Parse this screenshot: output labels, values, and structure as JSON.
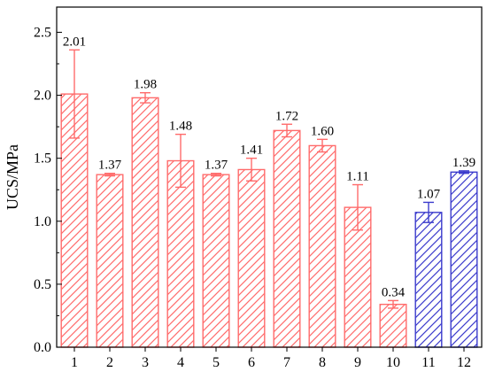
{
  "chart_data": {
    "type": "bar",
    "categories": [
      "1",
      "2",
      "3",
      "4",
      "5",
      "6",
      "7",
      "8",
      "9",
      "10",
      "11",
      "12"
    ],
    "values": [
      2.01,
      1.37,
      1.98,
      1.48,
      1.37,
      1.41,
      1.72,
      1.6,
      1.11,
      0.34,
      1.07,
      1.39
    ],
    "value_labels": [
      "2.01",
      "1.37",
      "1.98",
      "1.48",
      "1.37",
      "1.41",
      "1.72",
      "1.60",
      "1.11",
      "0.34",
      "1.07",
      "1.39"
    ],
    "error": [
      0.35,
      0.01,
      0.04,
      0.21,
      0.01,
      0.09,
      0.05,
      0.05,
      0.18,
      0.03,
      0.08,
      0.01
    ],
    "bar_colors": [
      "#ff6b6b",
      "#ff6b6b",
      "#ff6b6b",
      "#ff6b6b",
      "#ff6b6b",
      "#ff6b6b",
      "#ff6b6b",
      "#ff6b6b",
      "#ff6b6b",
      "#ff6b6b",
      "#3b3bcc",
      "#3b3bcc"
    ],
    "title": "",
    "xlabel": "",
    "ylabel": "UCS/MPa",
    "ylim": [
      0,
      2.7
    ],
    "yticks": [
      "0.0",
      "0.5",
      "1.0",
      "1.5",
      "2.0",
      "2.5"
    ],
    "grid": false,
    "legend": "none"
  }
}
